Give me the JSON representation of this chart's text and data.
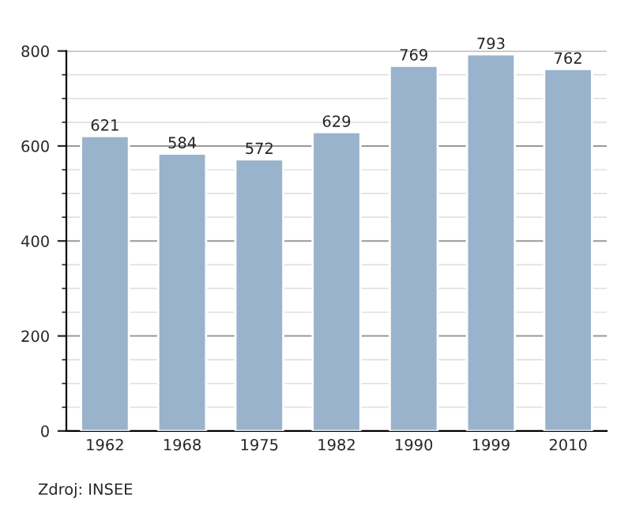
{
  "chart_data": {
    "type": "bar",
    "categories": [
      "1962",
      "1968",
      "1975",
      "1982",
      "1990",
      "1999",
      "2010"
    ],
    "values": [
      621,
      584,
      572,
      629,
      769,
      793,
      762
    ],
    "color": "#9ab3cc",
    "ylim": [
      0,
      800
    ],
    "yticks": [
      0,
      200,
      400,
      600,
      800
    ],
    "grid": "y",
    "data_labels": true,
    "annotations": [
      "Zdroj: INSEE"
    ]
  }
}
